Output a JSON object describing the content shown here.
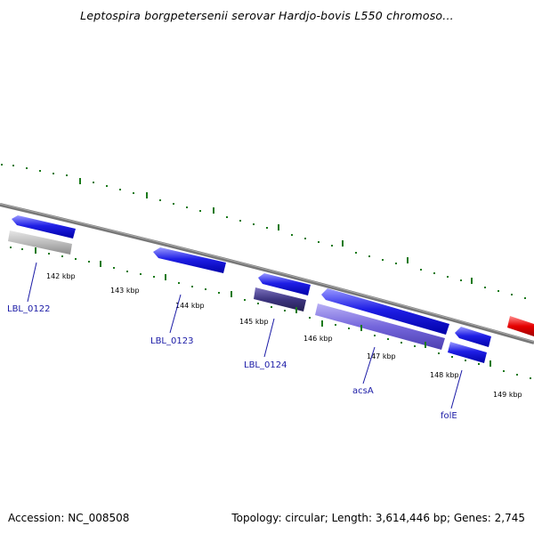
{
  "title": "Leptospira borgpetersenii serovar Hardjo-bovis L550 chromoso...",
  "footer": {
    "accession": "Accession: NC_008508",
    "summary": "Topology: circular; Length: 3,614,446 bp; Genes: 2,745"
  },
  "colors": {
    "backbone": "#7f7f7f",
    "forward_gene": "#1f1fe6",
    "reverse_gene": "#1f1fe6",
    "pseudo_gene": "#b3b3b3",
    "dark_feature": "#3a3373",
    "light_feature": "#6e5fd6",
    "red_feature": "#e60000",
    "ticks": "#1b7a1b",
    "gene_label": "#1a1aa6"
  },
  "scale_labels": [
    "142 kbp",
    "143 kbp",
    "144 kbp",
    "145 kbp",
    "146 kbp",
    "147 kbp",
    "148 kbp",
    "149 kbp"
  ],
  "gene_labels": [
    "LBL_0122",
    "LBL_0123",
    "LBL_0124",
    "acsA",
    "folE"
  ]
}
